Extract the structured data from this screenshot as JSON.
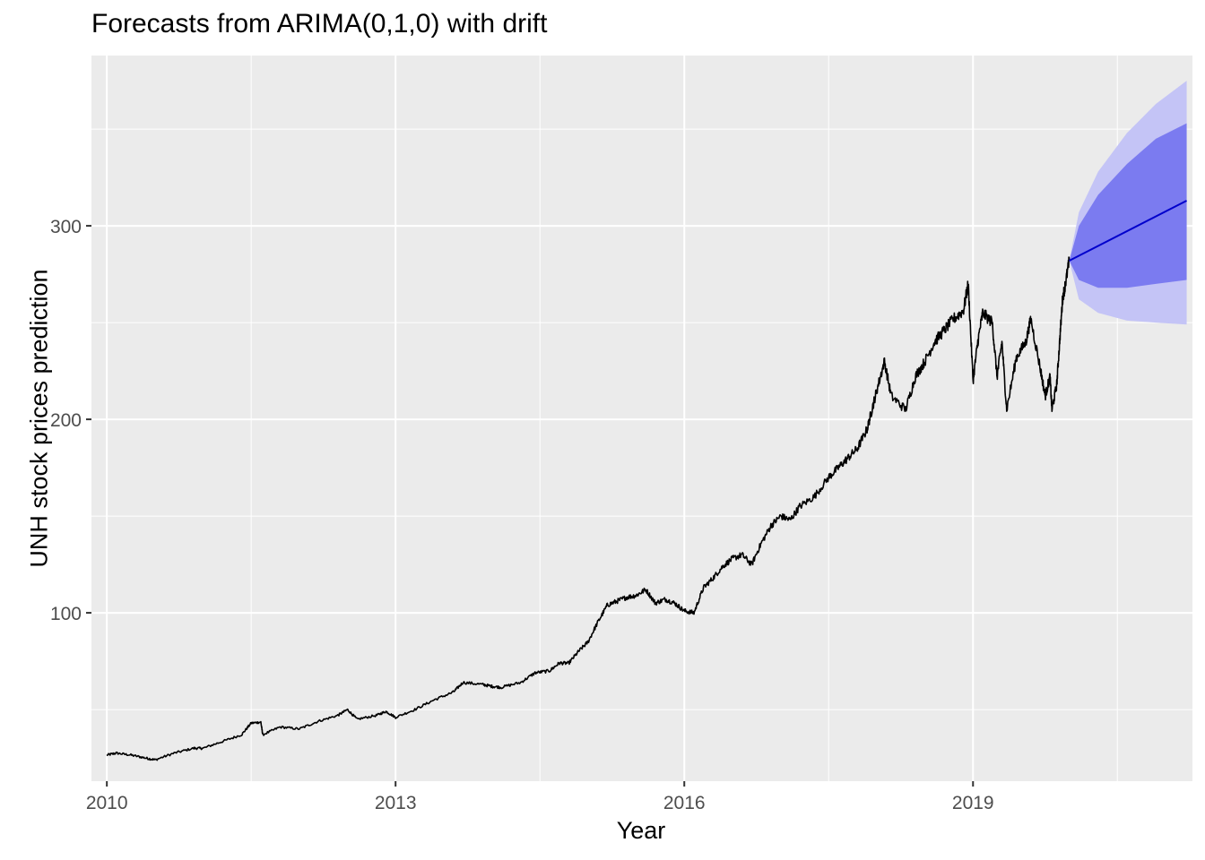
{
  "chart_data": {
    "type": "line",
    "title": "Forecasts from ARIMA(0,1,0) with drift",
    "xlabel": "Year",
    "ylabel": "UNH stock prices prediction",
    "xlim": [
      2009.84,
      2021.28
    ],
    "ylim": [
      13,
      388
    ],
    "x_ticks": [
      2010,
      2013,
      2016,
      2019
    ],
    "x_tick_labels": [
      "2010",
      "2013",
      "2016",
      "2019"
    ],
    "y_ticks": [
      100,
      200,
      300
    ],
    "y_tick_labels": [
      "100",
      "200",
      "300"
    ],
    "grid": true,
    "legend": "none",
    "colors": {
      "panel": "#ebebeb",
      "grid": "#ffffff",
      "history": "#000000",
      "forecast": "#0000cc",
      "band80": "#7b7bf0",
      "band95": "#c4c4f6"
    },
    "series": [
      {
        "values_from": "history",
        "history": [
          [
            2010.0,
            26.5
          ],
          [
            2010.1,
            27.5
          ],
          [
            2010.25,
            26.5
          ],
          [
            2010.4,
            25.0
          ],
          [
            2010.5,
            24.0
          ],
          [
            2010.7,
            27.5
          ],
          [
            2010.9,
            30.0
          ],
          [
            2011.0,
            30.0
          ],
          [
            2011.2,
            33.5
          ],
          [
            2011.4,
            37.0
          ],
          [
            2011.5,
            43.0
          ],
          [
            2011.6,
            43.5
          ],
          [
            2011.62,
            37.0
          ],
          [
            2011.8,
            41.0
          ],
          [
            2012.0,
            40.0
          ],
          [
            2012.2,
            44.0
          ],
          [
            2012.4,
            47.0
          ],
          [
            2012.5,
            50.0
          ],
          [
            2012.6,
            45.0
          ],
          [
            2012.8,
            47.0
          ],
          [
            2012.9,
            49.0
          ],
          [
            2013.0,
            46.0
          ],
          [
            2013.2,
            50.0
          ],
          [
            2013.4,
            55.0
          ],
          [
            2013.6,
            59.0
          ],
          [
            2013.7,
            64.0
          ],
          [
            2013.9,
            63.0
          ],
          [
            2014.0,
            62.0
          ],
          [
            2014.1,
            61.5
          ],
          [
            2014.3,
            64.0
          ],
          [
            2014.45,
            69.0
          ],
          [
            2014.6,
            70.0
          ],
          [
            2014.7,
            74.0
          ],
          [
            2014.8,
            74.0
          ],
          [
            2014.9,
            80.0
          ],
          [
            2015.0,
            85.0
          ],
          [
            2015.1,
            95.0
          ],
          [
            2015.2,
            104.0
          ],
          [
            2015.3,
            106.0
          ],
          [
            2015.4,
            108.0
          ],
          [
            2015.5,
            109.0
          ],
          [
            2015.6,
            112.0
          ],
          [
            2015.7,
            105.0
          ],
          [
            2015.8,
            107.0
          ],
          [
            2015.9,
            105.0
          ],
          [
            2016.0,
            101.0
          ],
          [
            2016.1,
            100.0
          ],
          [
            2016.2,
            113.0
          ],
          [
            2016.3,
            118.0
          ],
          [
            2016.4,
            124.0
          ],
          [
            2016.5,
            128.0
          ],
          [
            2016.6,
            130.0
          ],
          [
            2016.7,
            125.0
          ],
          [
            2016.8,
            136.0
          ],
          [
            2016.9,
            145.0
          ],
          [
            2017.0,
            150.0
          ],
          [
            2017.1,
            148.0
          ],
          [
            2017.2,
            155.0
          ],
          [
            2017.35,
            160.0
          ],
          [
            2017.5,
            170.0
          ],
          [
            2017.6,
            175.0
          ],
          [
            2017.7,
            180.0
          ],
          [
            2017.8,
            185.0
          ],
          [
            2017.9,
            195.0
          ],
          [
            2017.95,
            205.0
          ],
          [
            2018.0,
            215.0
          ],
          [
            2018.08,
            230.0
          ],
          [
            2018.15,
            212.0
          ],
          [
            2018.3,
            205.0
          ],
          [
            2018.4,
            222.0
          ],
          [
            2018.5,
            230.0
          ],
          [
            2018.6,
            240.0
          ],
          [
            2018.7,
            246.0
          ],
          [
            2018.8,
            252.0
          ],
          [
            2018.9,
            256.0
          ],
          [
            2018.95,
            270.0
          ],
          [
            2019.0,
            220.0
          ],
          [
            2019.05,
            240.0
          ],
          [
            2019.1,
            255.0
          ],
          [
            2019.2,
            250.0
          ],
          [
            2019.25,
            222.0
          ],
          [
            2019.3,
            240.0
          ],
          [
            2019.35,
            205.0
          ],
          [
            2019.45,
            232.0
          ],
          [
            2019.55,
            240.0
          ],
          [
            2019.6,
            252.0
          ],
          [
            2019.7,
            226.0
          ],
          [
            2019.75,
            212.0
          ],
          [
            2019.8,
            222.0
          ],
          [
            2019.82,
            205.0
          ],
          [
            2019.87,
            218.0
          ],
          [
            2019.9,
            240.0
          ],
          [
            2019.93,
            262.0
          ],
          [
            2019.96,
            270.0
          ],
          [
            2020.0,
            282.0
          ]
        ]
      },
      {
        "name": "",
        "forecast_mean": [
          [
            2020.0,
            282.0
          ],
          [
            2021.22,
            313.0
          ]
        ],
        "interval_80": [
          [
            2020.0,
            282.0,
            282.0
          ],
          [
            2020.1,
            272.0,
            300.0
          ],
          [
            2020.3,
            268.0,
            316.0
          ],
          [
            2020.6,
            268.0,
            332.0
          ],
          [
            2020.9,
            270.0,
            345.0
          ],
          [
            2021.22,
            272.0,
            353.0
          ]
        ],
        "interval_95": [
          [
            2020.0,
            282.0,
            282.0
          ],
          [
            2020.1,
            262.0,
            307.0
          ],
          [
            2020.3,
            255.0,
            328.0
          ],
          [
            2020.6,
            251.0,
            348.0
          ],
          [
            2020.9,
            250.0,
            363.0
          ],
          [
            2021.22,
            249.0,
            375.0
          ]
        ]
      }
    ]
  }
}
